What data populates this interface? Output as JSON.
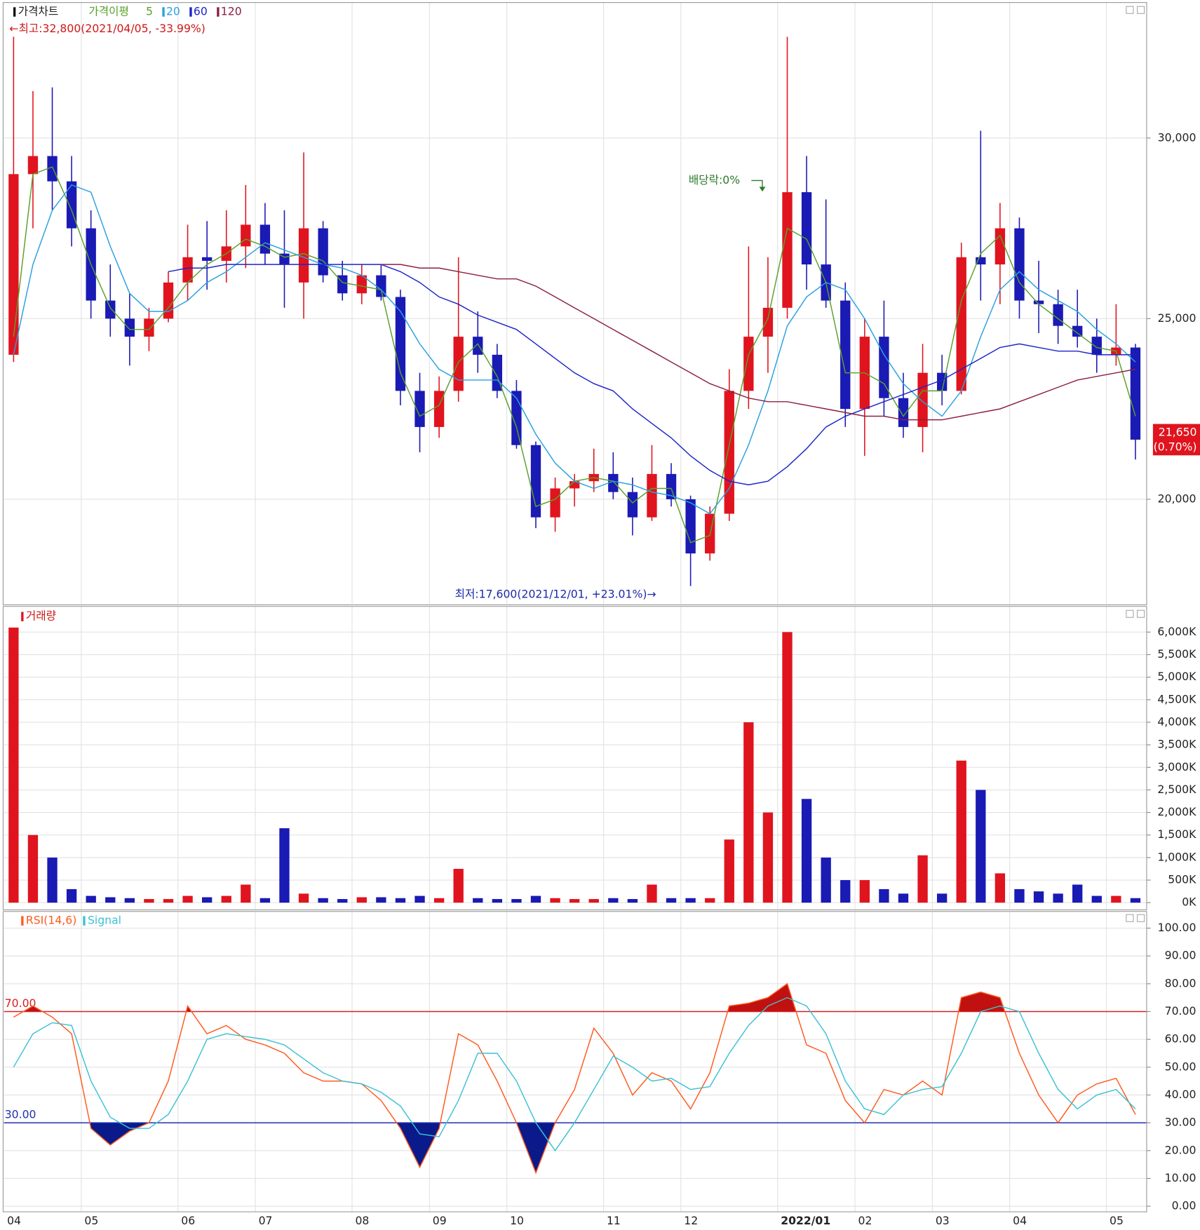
{
  "chart_data": [
    {
      "type": "candlestick",
      "title": "가격차트",
      "ma_label": "가격이평",
      "up_color": "#e0141e",
      "down_color": "#1a1ab4",
      "open": [
        24000,
        29000,
        29500,
        28800,
        27500,
        25500,
        25000,
        24500,
        25000,
        26000,
        26700,
        26600,
        27000,
        27600,
        26800,
        26000,
        27500,
        26200,
        25700,
        26200,
        25600,
        23000,
        22000,
        23000,
        24500,
        24000,
        23000,
        21500,
        19500,
        20300,
        20500,
        20700,
        20200,
        19500,
        20700,
        20000,
        18500,
        19600,
        23000,
        24500,
        25300,
        28500,
        26500,
        25500,
        22500,
        24500,
        22800,
        22000,
        23500,
        23000,
        26700,
        26500,
        27500,
        25500,
        25400,
        24800,
        24500,
        24000,
        24200
      ],
      "high": [
        32800,
        31300,
        31400,
        29500,
        28000,
        26500,
        25700,
        25300,
        26300,
        27600,
        27700,
        28000,
        28700,
        28200,
        28000,
        29600,
        27700,
        26600,
        26500,
        26500,
        25800,
        23500,
        23400,
        26700,
        25200,
        24300,
        23300,
        21600,
        20600,
        20700,
        21400,
        21300,
        20600,
        21500,
        21000,
        20100,
        19800,
        23600,
        27000,
        26700,
        32800,
        29500,
        28300,
        26000,
        25000,
        25500,
        23500,
        24300,
        24000,
        27100,
        30200,
        28200,
        27800,
        26600,
        25800,
        25800,
        25000,
        25400,
        24300
      ],
      "low": [
        23800,
        27500,
        28000,
        27000,
        25000,
        24500,
        23700,
        24100,
        24900,
        25500,
        25800,
        26000,
        26400,
        26500,
        25300,
        25000,
        26000,
        25500,
        25400,
        25500,
        22600,
        21300,
        21700,
        22700,
        23500,
        22800,
        21400,
        19200,
        19100,
        19800,
        20200,
        20000,
        19000,
        19400,
        19800,
        17600,
        18300,
        19400,
        22500,
        23500,
        25000,
        25800,
        25300,
        22000,
        21200,
        22300,
        21700,
        21300,
        22600,
        22900,
        25500,
        25400,
        25000,
        24600,
        24300,
        24200,
        23500,
        23700,
        21100
      ],
      "close": [
        29000,
        29500,
        28800,
        27500,
        25500,
        25000,
        24500,
        25000,
        26000,
        26700,
        26600,
        27000,
        27600,
        26800,
        26500,
        27500,
        26200,
        25700,
        26200,
        25600,
        23000,
        22000,
        23000,
        24500,
        24000,
        23000,
        21500,
        19500,
        20300,
        20500,
        20700,
        20200,
        19500,
        20700,
        20000,
        18500,
        19600,
        23000,
        24500,
        25300,
        28500,
        26500,
        25500,
        22500,
        24500,
        22800,
        22000,
        23500,
        23000,
        26700,
        26500,
        27500,
        25500,
        25400,
        24800,
        24500,
        24000,
        24200,
        21650
      ],
      "series": [
        {
          "name": "5",
          "color": "#5aa02c",
          "values": [
            24500,
            29000,
            29200,
            28000,
            26500,
            25300,
            24700,
            24700,
            25300,
            26000,
            26500,
            26800,
            27200,
            27000,
            26700,
            26800,
            26600,
            26000,
            25900,
            25800,
            23500,
            22300,
            22600,
            23800,
            24300,
            23400,
            22000,
            19800,
            20000,
            20500,
            20600,
            20500,
            19900,
            20300,
            20300,
            18800,
            19000,
            21500,
            24000,
            25000,
            27500,
            27200,
            26000,
            23500,
            23500,
            23200,
            22300,
            23000,
            23000,
            25500,
            26800,
            27300,
            26000,
            25400,
            25000,
            24600,
            24200,
            24100,
            22300
          ]
        },
        {
          "name": "20",
          "color": "#2aa0e0",
          "values": [
            24000,
            26500,
            28000,
            28700,
            28500,
            27000,
            25700,
            25200,
            25200,
            25500,
            26000,
            26300,
            26700,
            27100,
            26900,
            26700,
            26500,
            26400,
            26200,
            25800,
            25200,
            24300,
            23600,
            23300,
            23300,
            23300,
            22800,
            21800,
            21000,
            20500,
            20300,
            20500,
            20400,
            20200,
            20100,
            19900,
            19600,
            20300,
            21500,
            23000,
            24800,
            25600,
            26000,
            25800,
            25000,
            24000,
            23200,
            22700,
            22300,
            23000,
            24500,
            25800,
            26300,
            25800,
            25500,
            25200,
            24700,
            24300,
            23800
          ]
        },
        {
          "name": "60",
          "color": "#1c24c8",
          "values": [
            null,
            null,
            null,
            null,
            null,
            null,
            null,
            null,
            26300,
            26400,
            26400,
            26500,
            26500,
            26500,
            26500,
            26500,
            26500,
            26500,
            26500,
            26500,
            26300,
            26000,
            25600,
            25400,
            25100,
            24900,
            24700,
            24300,
            23900,
            23500,
            23200,
            23000,
            22500,
            22100,
            21700,
            21200,
            20800,
            20500,
            20400,
            20500,
            20900,
            21400,
            22000,
            22300,
            22500,
            22700,
            22900,
            23100,
            23300,
            23600,
            23900,
            24200,
            24300,
            24200,
            24100,
            24100,
            24000,
            24000,
            24000
          ]
        },
        {
          "name": "120",
          "color": "#8b2040",
          "values": [
            null,
            null,
            null,
            null,
            null,
            null,
            null,
            null,
            null,
            null,
            null,
            null,
            null,
            null,
            null,
            null,
            null,
            null,
            null,
            26500,
            26500,
            26400,
            26400,
            26300,
            26200,
            26100,
            26100,
            25900,
            25600,
            25300,
            25000,
            24700,
            24400,
            24100,
            23800,
            23500,
            23200,
            23000,
            22800,
            22700,
            22700,
            22600,
            22500,
            22400,
            22300,
            22300,
            22200,
            22200,
            22200,
            22300,
            22400,
            22500,
            22700,
            22900,
            23100,
            23300,
            23400,
            23500,
            23600
          ]
        }
      ],
      "ylim": [
        17100,
        33750
      ],
      "yticks": [
        {
          "value": 20000,
          "label": "20,000"
        },
        {
          "value": 25000,
          "label": "25,000"
        },
        {
          "value": 30000,
          "label": "30,000"
        }
      ],
      "annotations": {
        "high": "←최고:32,800(2021/04/05, -33.99%)",
        "low": "최저:17,600(2021/12/01, +23.01%)→",
        "dividend": "배당락:0%"
      },
      "last_label": "21,650",
      "last_change": "(0.70%)"
    },
    {
      "type": "bar",
      "title": "거래량",
      "color": "#e0141e",
      "values": [
        6100,
        1500,
        1000,
        300,
        150,
        120,
        100,
        80,
        80,
        150,
        120,
        150,
        400,
        100,
        1650,
        200,
        100,
        80,
        120,
        120,
        100,
        150,
        100,
        750,
        100,
        80,
        80,
        150,
        100,
        80,
        80,
        100,
        80,
        400,
        100,
        100,
        100,
        1400,
        4000,
        2000,
        6000,
        2300,
        1000,
        500,
        500,
        300,
        200,
        1050,
        200,
        3150,
        2500,
        650,
        300,
        250,
        200,
        400,
        150,
        150,
        100
      ],
      "ylim": [
        -160,
        6570
      ],
      "yticks": [
        {
          "value": 0,
          "label": "0K"
        },
        {
          "value": 500,
          "label": "500K"
        },
        {
          "value": 1000,
          "label": "1,000K"
        },
        {
          "value": 1500,
          "label": "1,500K"
        },
        {
          "value": 2000,
          "label": "2,000K"
        },
        {
          "value": 2500,
          "label": "2,500K"
        },
        {
          "value": 3000,
          "label": "3,000K"
        },
        {
          "value": 3500,
          "label": "3,500K"
        },
        {
          "value": 4000,
          "label": "4,000K"
        },
        {
          "value": 4500,
          "label": "4,500K"
        },
        {
          "value": 5000,
          "label": "5,000K"
        },
        {
          "value": 5500,
          "label": "5,500K"
        },
        {
          "value": 6000,
          "label": "6,000K"
        }
      ]
    },
    {
      "type": "line",
      "categories": [
        "04",
        null,
        null,
        null,
        "05",
        null,
        null,
        null,
        null,
        "06",
        null,
        null,
        null,
        "07",
        null,
        null,
        null,
        null,
        "08",
        null,
        null,
        null,
        "09",
        null,
        null,
        null,
        "10",
        null,
        null,
        null,
        null,
        "11",
        null,
        null,
        null,
        "12",
        null,
        null,
        null,
        null,
        "2022/01",
        null,
        null,
        null,
        "02",
        null,
        null,
        null,
        "03",
        null,
        null,
        null,
        "04",
        null,
        null,
        null,
        null,
        "05",
        null
      ],
      "series": [
        {
          "name": "RSI(14,6)",
          "color": "#ff5a1e",
          "values": [
            68,
            72,
            68,
            62,
            28,
            22,
            27,
            30,
            45,
            72,
            62,
            65,
            60,
            58,
            55,
            48,
            45,
            45,
            44,
            38,
            28,
            14,
            28,
            62,
            58,
            45,
            30,
            12,
            30,
            42,
            64,
            55,
            40,
            48,
            45,
            35,
            48,
            72,
            73,
            75,
            80,
            58,
            55,
            38,
            30,
            42,
            40,
            45,
            40,
            75,
            77,
            75,
            55,
            40,
            30,
            40,
            44,
            46,
            33
          ]
        },
        {
          "name": "Signal",
          "color": "#3ec1d3",
          "values": [
            50,
            62,
            66,
            65,
            45,
            32,
            28,
            28,
            33,
            45,
            60,
            62,
            61,
            60,
            58,
            53,
            48,
            45,
            44,
            41,
            36,
            26,
            25,
            38,
            55,
            55,
            45,
            30,
            20,
            30,
            42,
            54,
            50,
            45,
            46,
            42,
            43,
            55,
            65,
            72,
            75,
            72,
            62,
            45,
            35,
            33,
            40,
            42,
            43,
            55,
            70,
            72,
            70,
            55,
            42,
            35,
            40,
            42,
            35
          ]
        }
      ],
      "levels": [
        {
          "value": 70,
          "label": "70.00",
          "color": "#d62020",
          "fill": "#c0100f"
        },
        {
          "value": 30,
          "label": "30.00",
          "color": "#2030b0",
          "fill": "#0a1a8a"
        }
      ],
      "ylim": [
        -2,
        106
      ],
      "yticks": [
        {
          "value": 0,
          "label": "0.00"
        },
        {
          "value": 10,
          "label": "10.00"
        },
        {
          "value": 20,
          "label": "20.00"
        },
        {
          "value": 30,
          "label": "30.00"
        },
        {
          "value": 40,
          "label": "40.00"
        },
        {
          "value": 50,
          "label": "50.00"
        },
        {
          "value": 60,
          "label": "60.00"
        },
        {
          "value": 70,
          "label": "70.00"
        },
        {
          "value": 80,
          "label": "80.00"
        },
        {
          "value": 90,
          "label": "90.00"
        },
        {
          "value": 100,
          "label": "100.00"
        }
      ]
    }
  ]
}
